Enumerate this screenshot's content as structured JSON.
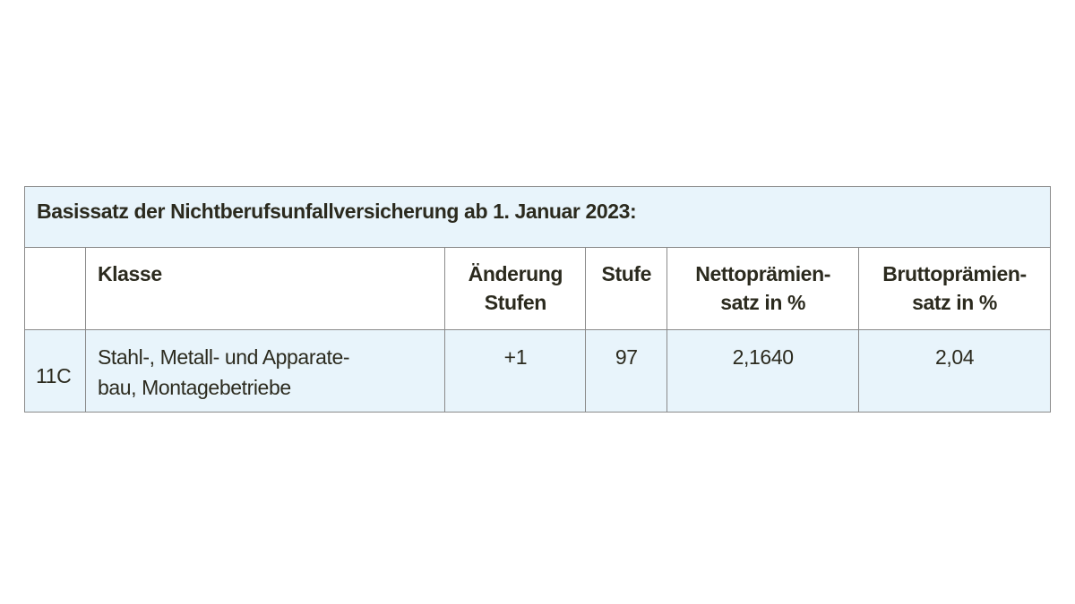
{
  "table": {
    "title": "Basissatz der Nichtberufsunfallversicherung ab 1. Januar 2023:",
    "headers": [
      "",
      "Klasse",
      "Änderung Stufen",
      "Stufe",
      "Nettoprämien-satz in %",
      "Bruttoprämien-satz in %"
    ],
    "header_lines": {
      "aenderung": [
        "Änderung",
        "Stufen"
      ],
      "netto": [
        "Nettoprämien-",
        "satz in %"
      ],
      "brutto": [
        "Bruttoprämien-",
        "satz in %"
      ]
    },
    "rows": [
      {
        "code": "11C",
        "klasse_lines": [
          "Stahl-, Metall- und Apparate-",
          "bau, Montagebetriebe"
        ],
        "aenderung": "+1",
        "stufe": "97",
        "netto": "2,1640",
        "brutto": "2,04"
      }
    ]
  },
  "colors": {
    "background": "#e8f4fb",
    "border": "#8a8a8a",
    "text": "#2b2a1e"
  }
}
